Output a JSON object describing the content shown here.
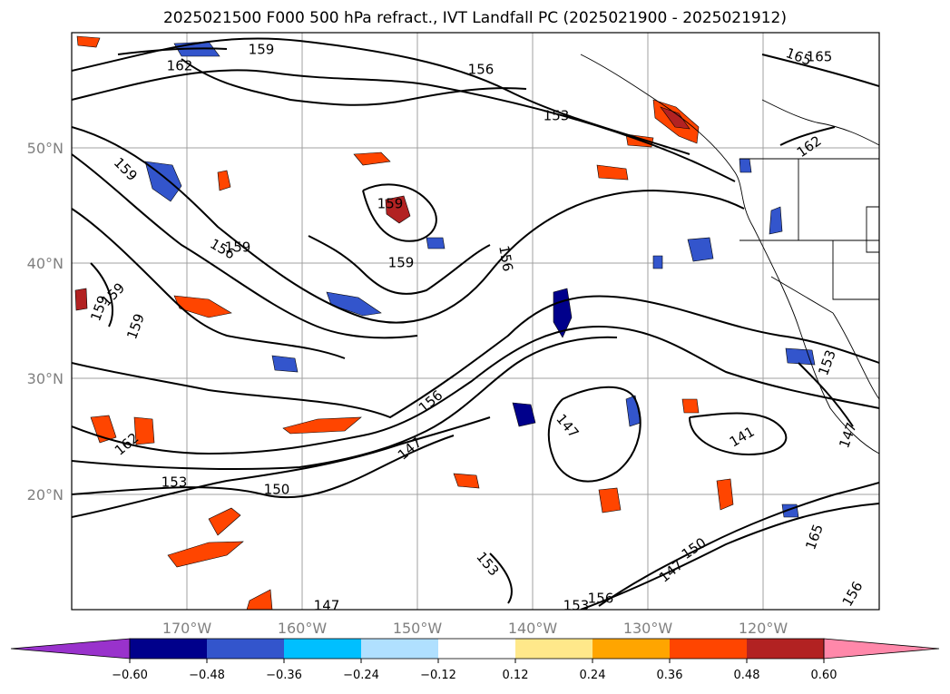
{
  "title": "2025021500 F000 500 hPa refract., IVT Landfall PC (2025021900 - 2025021912)",
  "lat_labels": [
    "50°N",
    "40°N",
    "30°N",
    "20°N"
  ],
  "lon_labels": [
    "170°W",
    "160°W",
    "150°W",
    "140°W",
    "130°W",
    "120°W"
  ],
  "contour_labels": [
    "159",
    "162",
    "156",
    "153",
    "165",
    "165",
    "162",
    "159",
    "156",
    "159",
    "159",
    "156",
    "159",
    "159",
    "159",
    "159",
    "156",
    "147",
    "150",
    "153",
    "162",
    "153",
    "147",
    "147",
    "141",
    "150",
    "153",
    "153",
    "147",
    "156",
    "165",
    "147",
    "156"
  ],
  "colorbar": {
    "ticks": [
      "−0.60",
      "−0.48",
      "−0.36",
      "−0.24",
      "−0.12",
      "0.12",
      "0.24",
      "0.36",
      "0.48",
      "0.60"
    ],
    "colors": [
      "#9932cc",
      "#00008b",
      "#3355cc",
      "#00bfff",
      "#b0e0ff",
      "#ffffff",
      "#ffe88a",
      "#ffa500",
      "#ff4500",
      "#b22222",
      "#ff88aa"
    ]
  }
}
